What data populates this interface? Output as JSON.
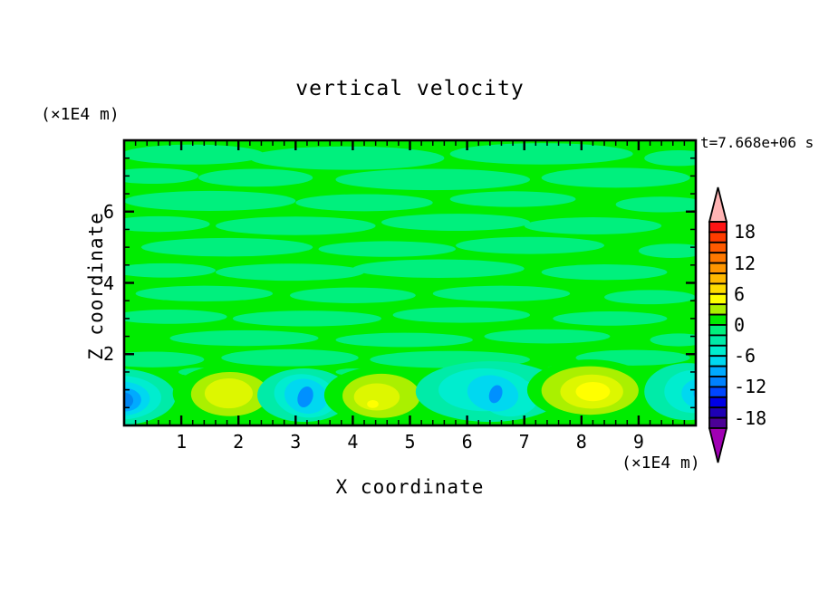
{
  "chart_data": {
    "type": "heatmap",
    "title": "vertical velocity",
    "time": "t=7.668e+06 s",
    "xlabel": "X coordinate",
    "ylabel": "Z coordinate",
    "x_unit": "(×1E4 m)",
    "y_unit": "(×1E4 m)",
    "xlim": [
      0,
      10
    ],
    "ylim": [
      0,
      8
    ],
    "x_major_ticks": [
      1,
      2,
      3,
      4,
      5,
      6,
      7,
      8,
      9
    ],
    "x_minor_step": 0.2,
    "y_major_ticks": [
      2,
      4,
      6
    ],
    "y_minor_step": 0.5,
    "grid": false,
    "legend_position": "right-colorbar",
    "colorbar": {
      "min": -20,
      "max": 20,
      "step": 2,
      "tick_values": [
        18,
        12,
        6,
        0,
        -6,
        -12,
        -18
      ],
      "over_color": "#FFB4B4",
      "under_color": "#A000B4",
      "colors_top_to_bottom": [
        "#FF1414",
        "#FF3C00",
        "#FF5A00",
        "#FF7800",
        "#FF9600",
        "#FFB900",
        "#FFDC00",
        "#FFFF00",
        "#AAF000",
        "#00EC00",
        "#00F07D",
        "#00EBA8",
        "#00EDCF",
        "#00D8F0",
        "#00AAFF",
        "#0082FF",
        "#0046FF",
        "#0000E6",
        "#1E00B4",
        "#4B0096"
      ]
    },
    "field": {
      "background_color": "#00EC00",
      "background_band": "0 to 2",
      "streak_color": "#00F07D",
      "streak_band": "-2 to 0",
      "streaks": [
        [
          1.2,
          7.6,
          1.25,
          0.28
        ],
        [
          3.9,
          7.5,
          1.7,
          0.33
        ],
        [
          7.3,
          7.62,
          1.6,
          0.3
        ],
        [
          9.7,
          7.5,
          0.6,
          0.22
        ],
        [
          0.5,
          7.0,
          0.8,
          0.22
        ],
        [
          2.3,
          6.95,
          1.0,
          0.25
        ],
        [
          5.4,
          6.9,
          1.7,
          0.3
        ],
        [
          8.6,
          6.95,
          1.3,
          0.28
        ],
        [
          1.5,
          6.3,
          1.5,
          0.28
        ],
        [
          4.2,
          6.25,
          1.2,
          0.24
        ],
        [
          6.8,
          6.35,
          1.1,
          0.22
        ],
        [
          9.4,
          6.2,
          0.8,
          0.22
        ],
        [
          0.6,
          5.65,
          0.9,
          0.22
        ],
        [
          3.0,
          5.6,
          1.4,
          0.26
        ],
        [
          5.8,
          5.7,
          1.3,
          0.24
        ],
        [
          8.2,
          5.6,
          1.2,
          0.24
        ],
        [
          1.8,
          5.0,
          1.5,
          0.26
        ],
        [
          4.6,
          4.95,
          1.2,
          0.22
        ],
        [
          7.1,
          5.05,
          1.3,
          0.24
        ],
        [
          9.6,
          4.9,
          0.6,
          0.2
        ],
        [
          0.7,
          4.35,
          0.9,
          0.2
        ],
        [
          2.9,
          4.3,
          1.3,
          0.24
        ],
        [
          5.5,
          4.4,
          1.5,
          0.26
        ],
        [
          8.4,
          4.3,
          1.1,
          0.22
        ],
        [
          1.4,
          3.7,
          1.2,
          0.22
        ],
        [
          4.0,
          3.65,
          1.1,
          0.22
        ],
        [
          6.6,
          3.7,
          1.2,
          0.22
        ],
        [
          9.2,
          3.6,
          0.8,
          0.2
        ],
        [
          0.8,
          3.05,
          1.0,
          0.2
        ],
        [
          3.2,
          3.0,
          1.3,
          0.22
        ],
        [
          5.9,
          3.1,
          1.2,
          0.22
        ],
        [
          8.5,
          3.0,
          1.0,
          0.2
        ],
        [
          2.1,
          2.45,
          1.3,
          0.22
        ],
        [
          4.9,
          2.4,
          1.2,
          0.2
        ],
        [
          7.4,
          2.5,
          1.1,
          0.2
        ],
        [
          9.7,
          2.4,
          0.5,
          0.18
        ],
        [
          0.5,
          1.85,
          0.9,
          0.22
        ],
        [
          2.9,
          1.9,
          1.2,
          0.24
        ],
        [
          5.7,
          1.85,
          1.4,
          0.24
        ],
        [
          8.9,
          1.9,
          1.0,
          0.22
        ],
        [
          1.3,
          1.5,
          0.35,
          0.12
        ],
        [
          2.2,
          1.45,
          0.3,
          0.1
        ],
        [
          4.0,
          1.5,
          0.3,
          0.1
        ],
        [
          7.8,
          1.6,
          0.4,
          0.12
        ]
      ],
      "features": [
        {
          "name": "downdraft-left-edge",
          "kind": "downdraft",
          "peak_band": "-10 to -8",
          "rings": [
            [
              -0.15,
              0.8,
              1.05,
              0.8,
              0,
              "#00EBA8"
            ],
            [
              -0.1,
              0.78,
              0.75,
              0.62,
              0,
              "#00EDCF"
            ],
            [
              -0.05,
              0.75,
              0.5,
              0.48,
              0,
              "#00D8F0"
            ],
            [
              0.0,
              0.72,
              0.3,
              0.33,
              0,
              "#00AAFF"
            ],
            [
              0.0,
              0.7,
              0.16,
              0.22,
              0,
              "#0086F0"
            ]
          ]
        },
        {
          "name": "updraft-x1.85",
          "kind": "updraft",
          "peak_band": "4 to 6",
          "rings": [
            [
              1.85,
              0.9,
              1.0,
              0.8,
              0,
              "#00EC00"
            ],
            [
              1.85,
              0.88,
              0.68,
              0.62,
              0,
              "#AAF000"
            ],
            [
              1.83,
              0.9,
              0.42,
              0.42,
              0,
              "#DDF700"
            ]
          ]
        },
        {
          "name": "downdraft-x3.15",
          "kind": "downdraft",
          "peak_band": "-12 to -10",
          "rings": [
            [
              3.15,
              0.85,
              0.82,
              0.75,
              0,
              "#00EBA8"
            ],
            [
              3.17,
              0.83,
              0.55,
              0.6,
              10,
              "#00EDCF"
            ],
            [
              3.18,
              0.82,
              0.38,
              0.48,
              15,
              "#00D8F0"
            ],
            [
              3.17,
              0.8,
              0.13,
              0.3,
              20,
              "#0090FF"
            ]
          ]
        },
        {
          "name": "updraft-x4.45",
          "kind": "updraft",
          "peak_band": "6 to 8",
          "rings": [
            [
              4.5,
              0.85,
              1.0,
              0.8,
              0,
              "#00EC00"
            ],
            [
              4.5,
              0.83,
              0.68,
              0.62,
              0,
              "#AAF000"
            ],
            [
              4.42,
              0.8,
              0.4,
              0.38,
              0,
              "#DDF700"
            ],
            [
              4.35,
              0.6,
              0.1,
              0.11,
              0,
              "#FFFF00"
            ]
          ]
        },
        {
          "name": "downdraft-x6.5",
          "kind": "downdraft",
          "peak_band": "-12 to -10",
          "rings": [
            [
              6.4,
              0.95,
              1.3,
              0.85,
              0,
              "#00EBA8"
            ],
            [
              6.3,
              1.0,
              0.8,
              0.6,
              0,
              "#00EDCF"
            ],
            [
              6.75,
              0.8,
              0.5,
              0.55,
              0,
              "#00EDCF"
            ],
            [
              6.45,
              0.9,
              0.45,
              0.5,
              10,
              "#00D8F0"
            ],
            [
              6.5,
              0.88,
              0.11,
              0.26,
              20,
              "#0090FF"
            ]
          ]
        },
        {
          "name": "updraft-x8.15",
          "kind": "updraft",
          "peak_band": "6 to 8",
          "rings": [
            [
              8.15,
              1.0,
              1.1,
              0.85,
              0,
              "#00EC00"
            ],
            [
              8.15,
              0.98,
              0.85,
              0.68,
              0,
              "#AAF000"
            ],
            [
              8.18,
              0.95,
              0.55,
              0.48,
              0,
              "#DDF700"
            ],
            [
              8.2,
              0.95,
              0.3,
              0.27,
              0,
              "#FFFF00"
            ]
          ]
        },
        {
          "name": "downdraft-right-edge",
          "kind": "downdraft",
          "peak_band": "-10 to -8",
          "rings": [
            [
              9.85,
              0.95,
              0.75,
              0.8,
              0,
              "#00EBA8"
            ],
            [
              9.95,
              0.95,
              0.5,
              0.6,
              0,
              "#00EDCF"
            ],
            [
              10.05,
              0.9,
              0.3,
              0.4,
              0,
              "#00D8F0"
            ],
            [
              10.08,
              0.9,
              0.12,
              0.2,
              0,
              "#00AAFF"
            ]
          ]
        }
      ]
    }
  }
}
